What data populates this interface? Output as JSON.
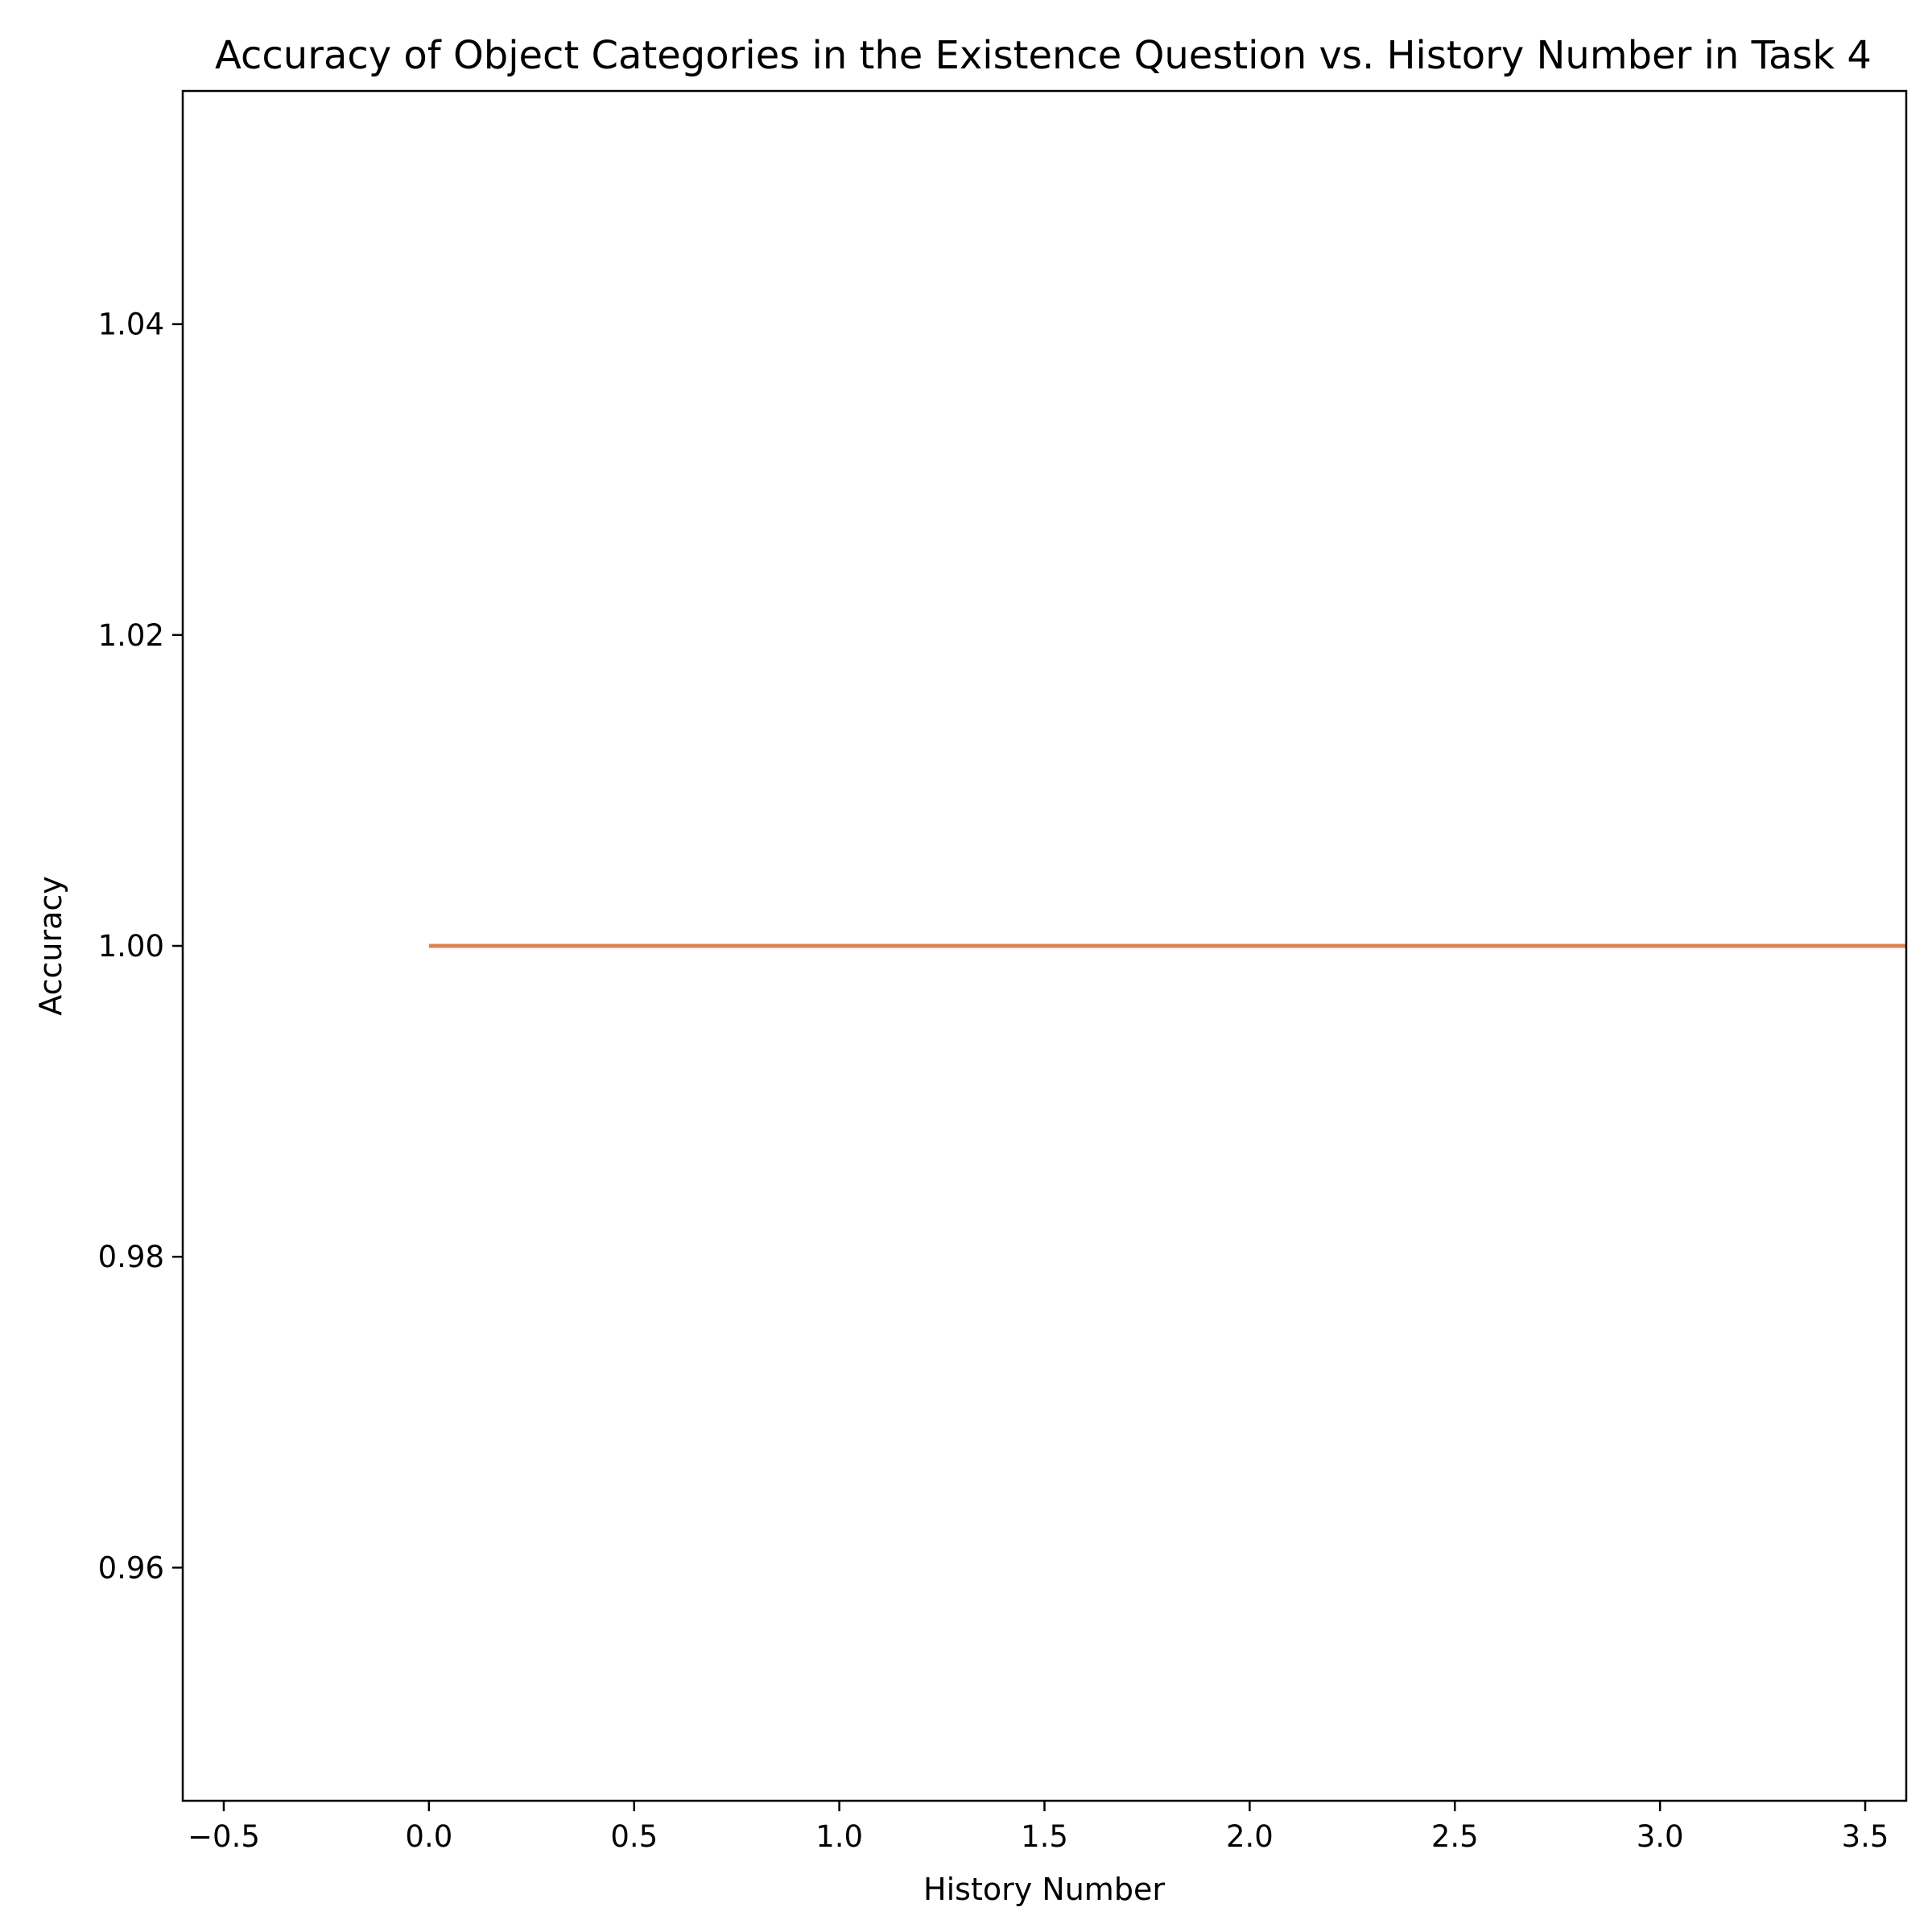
{
  "chart_data": {
    "type": "line",
    "title": "Accuracy of Object Categories in the Existence Question vs. History Number in Task 4",
    "xlabel": "History Number",
    "ylabel": "Accuracy",
    "xlim": [
      -0.6,
      3.6
    ],
    "ylim": [
      0.945,
      1.055
    ],
    "xticks": [
      -0.5,
      0.0,
      0.5,
      1.0,
      1.5,
      2.0,
      2.5,
      3.0,
      3.5
    ],
    "xtick_labels": [
      "−0.5",
      "0.0",
      "0.5",
      "1.0",
      "1.5",
      "2.0",
      "2.5",
      "3.0",
      "3.5"
    ],
    "yticks": [
      0.96,
      0.98,
      1.0,
      1.02,
      1.04
    ],
    "ytick_labels": [
      "0.96",
      "0.98",
      "1.00",
      "1.02",
      "1.04"
    ],
    "grid": false,
    "series": [
      {
        "color": "#dd8452",
        "x": [
          0,
          1,
          2,
          3,
          4
        ],
        "y": [
          1.0,
          1.0,
          1.0,
          1.0,
          1.0
        ]
      }
    ]
  }
}
